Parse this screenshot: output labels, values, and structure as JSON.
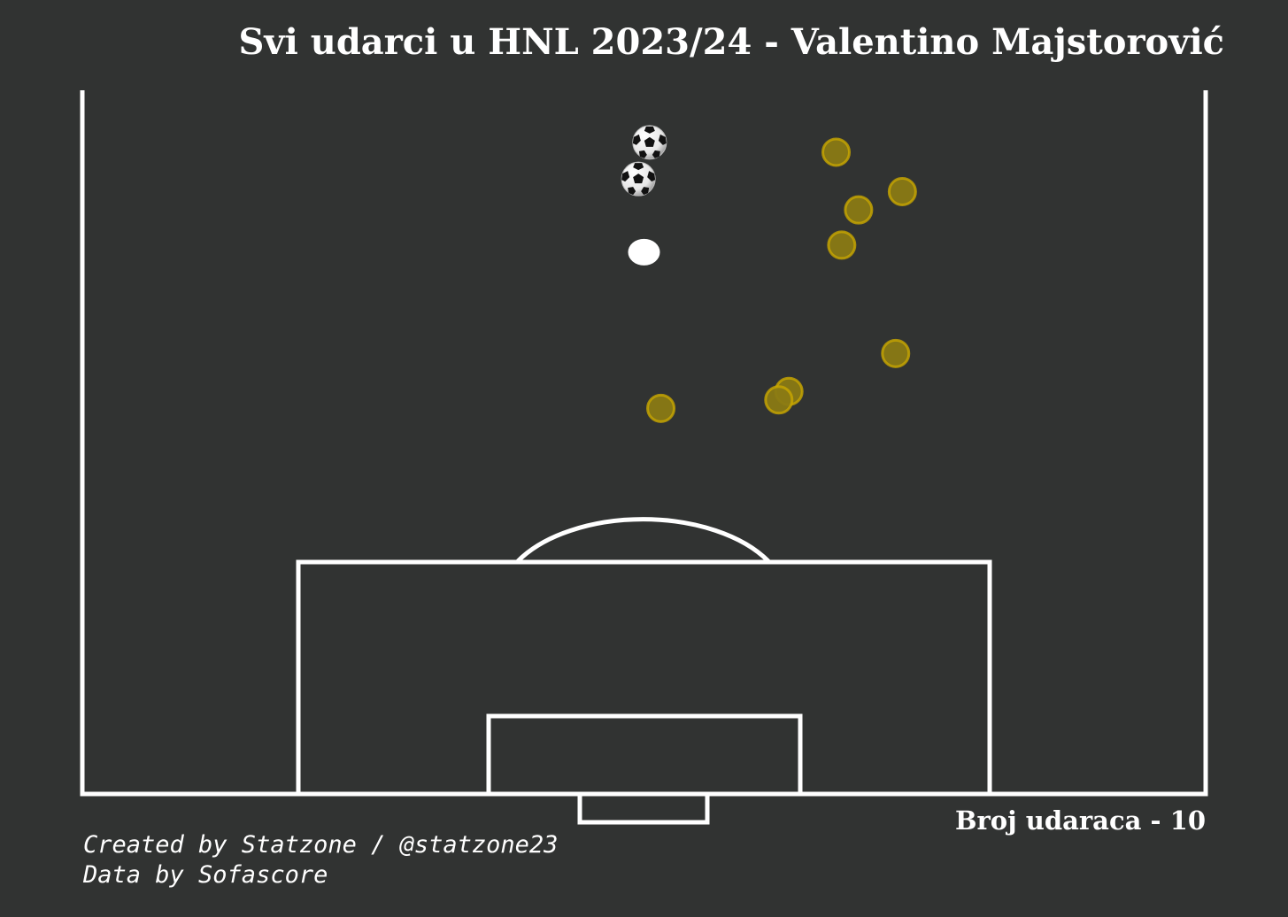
{
  "title": "Svi udarci u HNL 2023/24 - Valentino Majstorović",
  "shot_count_label": "Broj udaraca - 10",
  "credits": {
    "line1": "Created by Statzone / @statzone23",
    "line2": "Data by Sofascore"
  },
  "colors": {
    "background": "#313332",
    "lines": "#ffffff",
    "shot_fill": "#8a7a14",
    "shot_edge": "#c9a800",
    "goal_marker": "#ffffff"
  },
  "chart_data": {
    "type": "scatter",
    "title": "Svi udarci u HNL 2023/24 - Valentino Majstorović",
    "xlabel": "",
    "ylabel": "",
    "pitch": "Opta 0-100, half pitch, goal at bottom",
    "xlim": [
      0,
      100
    ],
    "ylim": [
      50,
      100
    ],
    "series": [
      {
        "name": "Udarci",
        "marker": "circle",
        "points": [
          {
            "x": 72.4,
            "y": 81.3
          },
          {
            "x": 62.9,
            "y": 78.6
          },
          {
            "x": 62.0,
            "y": 78.0
          },
          {
            "x": 51.5,
            "y": 77.4
          },
          {
            "x": 67.6,
            "y": 89.0
          },
          {
            "x": 69.1,
            "y": 91.5
          },
          {
            "x": 73.0,
            "y": 92.8
          },
          {
            "x": 67.1,
            "y": 95.6
          }
        ]
      },
      {
        "name": "Golovi",
        "marker": "ball",
        "points": [
          {
            "x": 49.5,
            "y": 93.7
          },
          {
            "x": 50.5,
            "y": 96.3
          }
        ]
      }
    ],
    "annotations": [
      {
        "type": "penalty-spot",
        "x": 50,
        "y": 88.5
      }
    ]
  }
}
